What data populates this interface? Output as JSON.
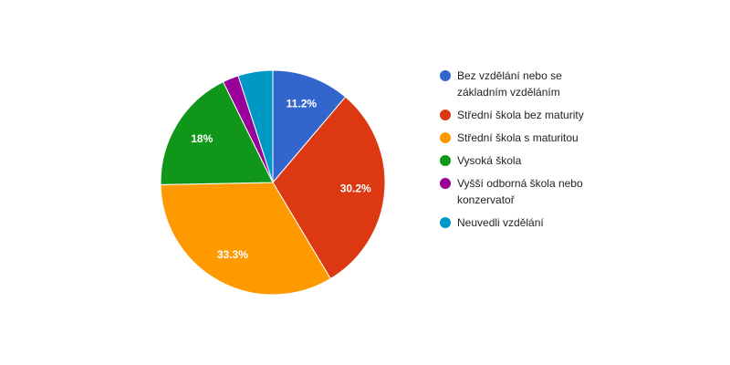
{
  "chart_data": {
    "type": "pie",
    "categories": [
      "Bez vzdělání nebo se základním vzděláním",
      "Střední škola bez maturity",
      "Střední škola s maturitou",
      "Vysoká škola",
      "Vyšší odborná škola nebo konzervatoř",
      "Neuvedli vzdělání"
    ],
    "values": [
      11.2,
      30.2,
      33.3,
      18,
      2.3,
      5
    ],
    "value_labels": [
      "11.2%",
      "30.2%",
      "33.3%",
      "18%",
      null,
      null
    ],
    "colors": [
      "#3366cc",
      "#dc3912",
      "#ff9900",
      "#109618",
      "#990099",
      "#0099c6"
    ]
  }
}
